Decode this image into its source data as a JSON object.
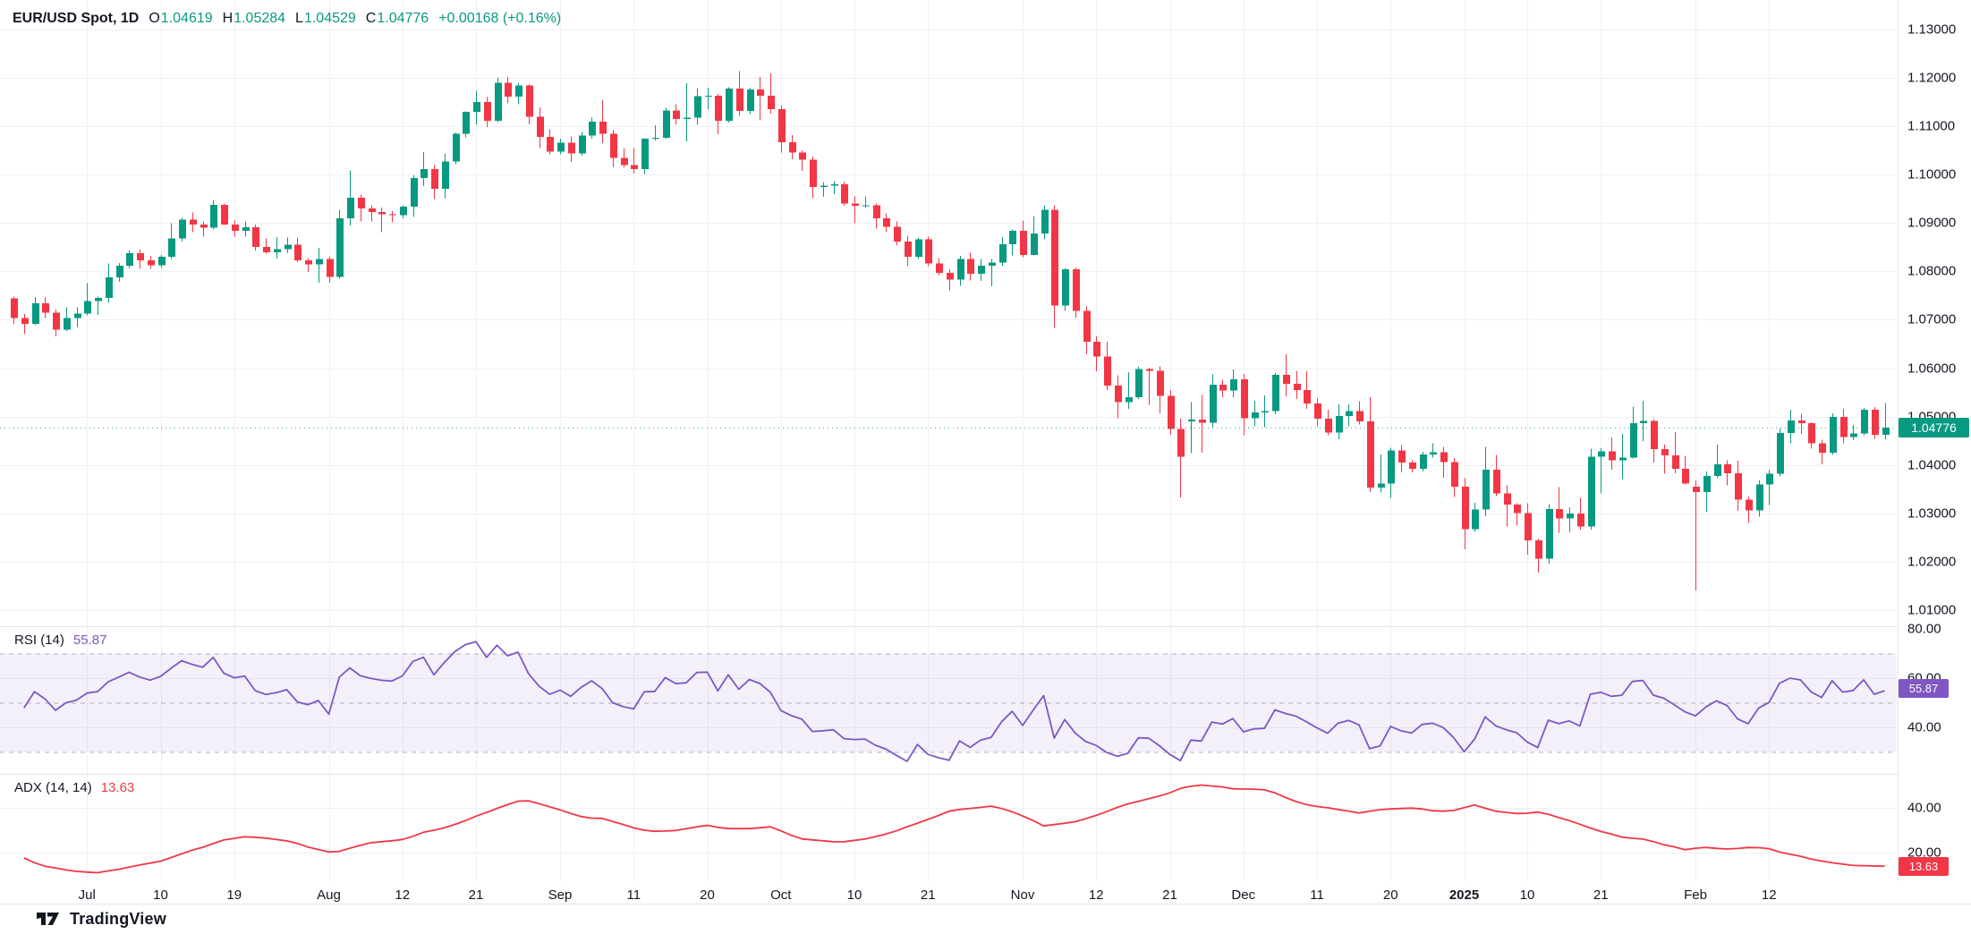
{
  "header": {
    "symbol": "EUR/USD Spot, 1D",
    "ohlc": [
      {
        "k": "O",
        "v": "1.04619"
      },
      {
        "k": "H",
        "v": "1.05284"
      },
      {
        "k": "L",
        "v": "1.04529"
      },
      {
        "k": "C",
        "v": "1.04776"
      }
    ],
    "change": "+0.00168 (+0.16%)"
  },
  "colors": {
    "up": "#089981",
    "down": "#f23645",
    "rsi_line": "#7e57c2",
    "adx_line": "#f23645",
    "grid": "#eef0f3",
    "separator": "#e0e3eb",
    "axis_text": "#131722",
    "band_fill": "rgba(126,87,194,0.09)",
    "band_line": "#787b86",
    "price_badge_bg": "#089981",
    "rsi_badge_bg": "#7e57c2",
    "adx_badge_bg": "#f23645"
  },
  "price_axis": {
    "ticks": [
      "1.13000",
      "1.12000",
      "1.11000",
      "1.10000",
      "1.09000",
      "1.08000",
      "1.07000",
      "1.06000",
      "1.05000",
      "1.04000",
      "1.03000",
      "1.02000",
      "1.01000"
    ],
    "badge": "1.04776"
  },
  "time_axis": {
    "ticks": [
      {
        "label": "Jul",
        "i": 7
      },
      {
        "label": "10",
        "i": 14
      },
      {
        "label": "19",
        "i": 21
      },
      {
        "label": "Aug",
        "i": 30
      },
      {
        "label": "12",
        "i": 37
      },
      {
        "label": "21",
        "i": 44
      },
      {
        "label": "Sep",
        "i": 52
      },
      {
        "label": "11",
        "i": 59
      },
      {
        "label": "20",
        "i": 66
      },
      {
        "label": "Oct",
        "i": 73
      },
      {
        "label": "10",
        "i": 80
      },
      {
        "label": "21",
        "i": 87
      },
      {
        "label": "Nov",
        "i": 96
      },
      {
        "label": "12",
        "i": 103
      },
      {
        "label": "21",
        "i": 110
      },
      {
        "label": "Dec",
        "i": 117
      },
      {
        "label": "11",
        "i": 124
      },
      {
        "label": "20",
        "i": 131
      },
      {
        "label": "2025",
        "i": 138,
        "bold": true
      },
      {
        "label": "10",
        "i": 144
      },
      {
        "label": "21",
        "i": 151
      },
      {
        "label": "Feb",
        "i": 160
      },
      {
        "label": "12",
        "i": 167
      }
    ]
  },
  "rsi_panel": {
    "title": "RSI",
    "params": "(14)",
    "value": "55.87",
    "badge": "55.87",
    "axis_ticks": [
      "80.00",
      "60.00",
      "40.00"
    ],
    "levels": {
      "upper": 70,
      "middle": 50,
      "lower": 30
    }
  },
  "adx_panel": {
    "title": "ADX",
    "params": "(14, 14)",
    "value": "13.63",
    "badge": "13.63",
    "axis_ticks": [
      "40.00",
      "20.00"
    ]
  },
  "footer": {
    "brand": "TradingView"
  },
  "chart_data": {
    "type": "candlestick",
    "symbol": "EUR/USD Spot",
    "interval": "1D",
    "last_price": 1.04776,
    "price_scale": {
      "min": 1.01,
      "max": 1.13,
      "step": 0.01
    },
    "indicators": [
      {
        "type": "RSI",
        "period": 14,
        "last": 55.87,
        "levels": [
          70,
          50,
          30
        ],
        "scale_ticks": [
          80,
          60,
          40
        ]
      },
      {
        "type": "ADX",
        "smoothing": 14,
        "di_length": 14,
        "last": 13.63,
        "scale_ticks": [
          40,
          20
        ]
      }
    ],
    "candles": [
      [
        1.0744,
        1.0748,
        1.0692,
        1.0704
      ],
      [
        1.0704,
        1.0712,
        1.0671,
        1.0692
      ],
      [
        1.0692,
        1.0747,
        1.0689,
        1.0734
      ],
      [
        1.0734,
        1.0746,
        1.0704,
        1.0715
      ],
      [
        1.0715,
        1.0721,
        1.0666,
        1.068
      ],
      [
        1.068,
        1.0726,
        1.0677,
        1.0704
      ],
      [
        1.0704,
        1.0726,
        1.0685,
        1.0713
      ],
      [
        1.0713,
        1.0776,
        1.0709,
        1.0739
      ],
      [
        1.0739,
        1.0748,
        1.071,
        1.0745
      ],
      [
        1.0745,
        1.0816,
        1.0735,
        1.0788
      ],
      [
        1.0788,
        1.0817,
        1.0779,
        1.0812
      ],
      [
        1.0812,
        1.0843,
        1.0806,
        1.0838
      ],
      [
        1.0838,
        1.0845,
        1.0805,
        1.0823
      ],
      [
        1.0823,
        1.0832,
        1.0805,
        1.0813
      ],
      [
        1.0813,
        1.0834,
        1.0807,
        1.083
      ],
      [
        1.083,
        1.09,
        1.0826,
        1.0868
      ],
      [
        1.0868,
        1.0911,
        1.0862,
        1.0907
      ],
      [
        1.0907,
        1.0922,
        1.0881,
        1.0897
      ],
      [
        1.0897,
        1.0903,
        1.0872,
        1.089
      ],
      [
        1.089,
        1.0948,
        1.0887,
        1.0938
      ],
      [
        1.0938,
        1.094,
        1.0896,
        1.0897
      ],
      [
        1.0897,
        1.0905,
        1.0872,
        1.0884
      ],
      [
        1.0884,
        1.0903,
        1.0872,
        1.0891
      ],
      [
        1.0891,
        1.0897,
        1.0843,
        1.0851
      ],
      [
        1.0851,
        1.0868,
        1.0837,
        1.084
      ],
      [
        1.084,
        1.0871,
        1.0827,
        1.0846
      ],
      [
        1.0846,
        1.087,
        1.0838,
        1.0855
      ],
      [
        1.0855,
        1.087,
        1.0819,
        1.0823
      ],
      [
        1.0823,
        1.0828,
        1.0799,
        1.0815
      ],
      [
        1.0815,
        1.0849,
        1.0777,
        1.0826
      ],
      [
        1.0826,
        1.083,
        1.0777,
        1.0789
      ],
      [
        1.0789,
        1.0927,
        1.0785,
        1.091
      ],
      [
        1.091,
        1.1009,
        1.0895,
        1.0952
      ],
      [
        1.0952,
        1.0959,
        1.0903,
        1.093
      ],
      [
        1.093,
        1.0937,
        1.0903,
        1.0923
      ],
      [
        1.0923,
        1.0932,
        1.0881,
        1.0918
      ],
      [
        1.0918,
        1.0925,
        1.0902,
        1.0916
      ],
      [
        1.0916,
        1.0937,
        1.091,
        1.0934
      ],
      [
        1.0934,
        1.0999,
        1.0913,
        1.0993
      ],
      [
        1.0993,
        1.1047,
        1.0976,
        1.1012
      ],
      [
        1.1012,
        1.102,
        1.095,
        1.0971
      ],
      [
        1.0971,
        1.1043,
        1.0951,
        1.1027
      ],
      [
        1.1027,
        1.1087,
        1.1022,
        1.1085
      ],
      [
        1.1085,
        1.1131,
        1.1077,
        1.113
      ],
      [
        1.113,
        1.1173,
        1.1103,
        1.115
      ],
      [
        1.115,
        1.116,
        1.1098,
        1.1111
      ],
      [
        1.1111,
        1.12,
        1.1109,
        1.119
      ],
      [
        1.119,
        1.1202,
        1.1147,
        1.1161
      ],
      [
        1.1161,
        1.119,
        1.1146,
        1.1184
      ],
      [
        1.1184,
        1.1186,
        1.1104,
        1.112
      ],
      [
        1.112,
        1.1139,
        1.1055,
        1.1078
      ],
      [
        1.1078,
        1.1094,
        1.1042,
        1.1048
      ],
      [
        1.1048,
        1.1074,
        1.1042,
        1.1066
      ],
      [
        1.1066,
        1.1079,
        1.1026,
        1.1044
      ],
      [
        1.1044,
        1.1088,
        1.1039,
        1.1081
      ],
      [
        1.1081,
        1.1119,
        1.1074,
        1.111
      ],
      [
        1.111,
        1.1155,
        1.1065,
        1.1085
      ],
      [
        1.1085,
        1.1092,
        1.1015,
        1.1035
      ],
      [
        1.1035,
        1.1054,
        1.1015,
        1.102
      ],
      [
        1.102,
        1.1055,
        1.1002,
        1.1012
      ],
      [
        1.1012,
        1.1075,
        1.1001,
        1.1074
      ],
      [
        1.1074,
        1.1102,
        1.1071,
        1.1076
      ],
      [
        1.1076,
        1.1138,
        1.1074,
        1.1133
      ],
      [
        1.1133,
        1.1146,
        1.1103,
        1.1115
      ],
      [
        1.1115,
        1.1189,
        1.1069,
        1.1118
      ],
      [
        1.1118,
        1.1179,
        1.1103,
        1.1162
      ],
      [
        1.1162,
        1.118,
        1.1135,
        1.1163
      ],
      [
        1.1163,
        1.1167,
        1.1084,
        1.1111
      ],
      [
        1.1111,
        1.1181,
        1.1108,
        1.1178
      ],
      [
        1.1178,
        1.1214,
        1.1122,
        1.1132
      ],
      [
        1.1132,
        1.118,
        1.1125,
        1.1176
      ],
      [
        1.1176,
        1.1202,
        1.1112,
        1.1163
      ],
      [
        1.1163,
        1.1209,
        1.1126,
        1.1135
      ],
      [
        1.1135,
        1.1143,
        1.1046,
        1.1067
      ],
      [
        1.1067,
        1.1082,
        1.1032,
        1.1046
      ],
      [
        1.1046,
        1.105,
        1.1008,
        1.1031
      ],
      [
        1.1031,
        1.1037,
        1.0951,
        1.0975
      ],
      [
        1.0975,
        1.0985,
        1.0954,
        1.0977
      ],
      [
        1.0977,
        1.0987,
        1.096,
        1.098
      ],
      [
        1.098,
        1.0986,
        1.0936,
        1.094
      ],
      [
        1.094,
        1.0955,
        1.09,
        1.0936
      ],
      [
        1.0936,
        1.0955,
        1.0932,
        1.0937
      ],
      [
        1.0937,
        1.094,
        1.0889,
        1.091
      ],
      [
        1.091,
        1.092,
        1.0882,
        1.0892
      ],
      [
        1.0892,
        1.0903,
        1.0853,
        1.0862
      ],
      [
        1.0862,
        1.0874,
        1.0811,
        1.083
      ],
      [
        1.083,
        1.0869,
        1.0826,
        1.0866
      ],
      [
        1.0866,
        1.0872,
        1.0811,
        1.0816
      ],
      [
        1.0816,
        1.0828,
        1.0792,
        1.0797
      ],
      [
        1.0797,
        1.0804,
        1.0761,
        1.0783
      ],
      [
        1.0783,
        1.0832,
        1.077,
        1.0826
      ],
      [
        1.0826,
        1.0839,
        1.0781,
        1.0795
      ],
      [
        1.0795,
        1.0826,
        1.078,
        1.0812
      ],
      [
        1.0812,
        1.0826,
        1.0769,
        1.0818
      ],
      [
        1.0818,
        1.0871,
        1.0812,
        1.0856
      ],
      [
        1.0856,
        1.0887,
        1.0833,
        1.0884
      ],
      [
        1.0884,
        1.0905,
        1.0829,
        1.0834
      ],
      [
        1.0834,
        1.0914,
        1.0833,
        1.0878
      ],
      [
        1.0878,
        1.0937,
        1.0866,
        1.0927
      ],
      [
        1.0927,
        1.0937,
        1.0683,
        1.073
      ],
      [
        1.073,
        1.0806,
        1.0718,
        1.0804
      ],
      [
        1.0804,
        1.0808,
        1.0705,
        1.0718
      ],
      [
        1.0718,
        1.0728,
        1.0629,
        1.0655
      ],
      [
        1.0655,
        1.0666,
        1.0594,
        1.0624
      ],
      [
        1.0624,
        1.0655,
        1.0555,
        1.0564
      ],
      [
        1.0564,
        1.0585,
        1.0497,
        1.053
      ],
      [
        1.053,
        1.0592,
        1.0516,
        1.054
      ],
      [
        1.054,
        1.0603,
        1.0536,
        1.0598
      ],
      [
        1.0598,
        1.0601,
        1.0524,
        1.0595
      ],
      [
        1.0595,
        1.0604,
        1.0507,
        1.0543
      ],
      [
        1.0543,
        1.0555,
        1.0462,
        1.0474
      ],
      [
        1.0474,
        1.0496,
        1.0333,
        1.0417
      ],
      [
        1.049,
        1.053,
        1.0424,
        1.0494
      ],
      [
        1.0494,
        1.0545,
        1.0425,
        1.0487
      ],
      [
        1.0487,
        1.0587,
        1.0478,
        1.0566
      ],
      [
        1.0566,
        1.0576,
        1.054,
        1.0554
      ],
      [
        1.0554,
        1.0597,
        1.054,
        1.0577
      ],
      [
        1.0577,
        1.0588,
        1.0461,
        1.0497
      ],
      [
        1.0497,
        1.0533,
        1.048,
        1.0509
      ],
      [
        1.0509,
        1.0544,
        1.0478,
        1.0511
      ],
      [
        1.0511,
        1.059,
        1.0505,
        1.0586
      ],
      [
        1.0586,
        1.0629,
        1.0542,
        1.0568
      ],
      [
        1.0568,
        1.0595,
        1.0536,
        1.0555
      ],
      [
        1.0555,
        1.0594,
        1.0516,
        1.0527
      ],
      [
        1.0527,
        1.0538,
        1.048,
        1.0496
      ],
      [
        1.0496,
        1.0514,
        1.0461,
        1.0467
      ],
      [
        1.0467,
        1.0525,
        1.0453,
        1.0501
      ],
      [
        1.0501,
        1.0525,
        1.048,
        1.0511
      ],
      [
        1.0511,
        1.0532,
        1.0484,
        1.049
      ],
      [
        1.049,
        1.054,
        1.0344,
        1.0353
      ],
      [
        1.0353,
        1.0422,
        1.0343,
        1.0362
      ],
      [
        1.0362,
        1.0436,
        1.0332,
        1.043
      ],
      [
        1.043,
        1.0441,
        1.0385,
        1.0405
      ],
      [
        1.0405,
        1.041,
        1.0385,
        1.0392
      ],
      [
        1.0392,
        1.0427,
        1.0387,
        1.0422
      ],
      [
        1.0422,
        1.0445,
        1.0415,
        1.0426
      ],
      [
        1.0426,
        1.0437,
        1.0374,
        1.0406
      ],
      [
        1.0406,
        1.0414,
        1.0334,
        1.0355
      ],
      [
        1.0355,
        1.0374,
        1.0226,
        1.0267
      ],
      [
        1.0267,
        1.0322,
        1.0262,
        1.0308
      ],
      [
        1.0308,
        1.0437,
        1.0294,
        1.039
      ],
      [
        1.039,
        1.0421,
        1.0336,
        1.0341
      ],
      [
        1.0341,
        1.0358,
        1.0273,
        1.0318
      ],
      [
        1.0318,
        1.0321,
        1.0275,
        1.0301
      ],
      [
        1.0301,
        1.0321,
        1.0215,
        1.0244
      ],
      [
        1.0244,
        1.0248,
        1.0178,
        1.0206
      ],
      [
        1.0206,
        1.0319,
        1.0196,
        1.0309
      ],
      [
        1.0309,
        1.0354,
        1.026,
        1.0289
      ],
      [
        1.0289,
        1.0313,
        1.0261,
        1.03
      ],
      [
        1.03,
        1.0332,
        1.0266,
        1.0273
      ],
      [
        1.0273,
        1.0434,
        1.0266,
        1.0417
      ],
      [
        1.0417,
        1.0435,
        1.0341,
        1.0428
      ],
      [
        1.0428,
        1.0457,
        1.039,
        1.041
      ],
      [
        1.041,
        1.0464,
        1.0371,
        1.0415
      ],
      [
        1.0415,
        1.0521,
        1.0413,
        1.0486
      ],
      [
        1.0486,
        1.0533,
        1.0449,
        1.0491
      ],
      [
        1.0491,
        1.0495,
        1.0405,
        1.0433
      ],
      [
        1.0433,
        1.0442,
        1.0382,
        1.042
      ],
      [
        1.042,
        1.0468,
        1.0383,
        1.0392
      ],
      [
        1.0392,
        1.0419,
        1.036,
        1.0362
      ],
      [
        1.0355,
        1.0368,
        1.0141,
        1.0344
      ],
      [
        1.0344,
        1.0387,
        1.0303,
        1.0377
      ],
      [
        1.0377,
        1.0442,
        1.0373,
        1.0401
      ],
      [
        1.0401,
        1.041,
        1.0358,
        1.0383
      ],
      [
        1.0383,
        1.0409,
        1.0305,
        1.0328
      ],
      [
        1.0328,
        1.0335,
        1.028,
        1.0306
      ],
      [
        1.0306,
        1.0368,
        1.0293,
        1.036
      ],
      [
        1.036,
        1.039,
        1.0317,
        1.0382
      ],
      [
        1.0382,
        1.0475,
        1.0376,
        1.0466
      ],
      [
        1.0466,
        1.0514,
        1.0445,
        1.0492
      ],
      [
        1.0492,
        1.0506,
        1.0464,
        1.0486
      ],
      [
        1.0486,
        1.0488,
        1.0434,
        1.0445
      ],
      [
        1.0445,
        1.0452,
        1.0401,
        1.0425
      ],
      [
        1.0425,
        1.0507,
        1.0421,
        1.0499
      ],
      [
        1.0499,
        1.0516,
        1.0445,
        1.0458
      ],
      [
        1.0458,
        1.0483,
        1.0451,
        1.0465
      ],
      [
        1.0465,
        1.0518,
        1.0461,
        1.0514
      ],
      [
        1.0514,
        1.052,
        1.0454,
        1.0462
      ],
      [
        1.04619,
        1.05284,
        1.04529,
        1.04776
      ]
    ]
  }
}
